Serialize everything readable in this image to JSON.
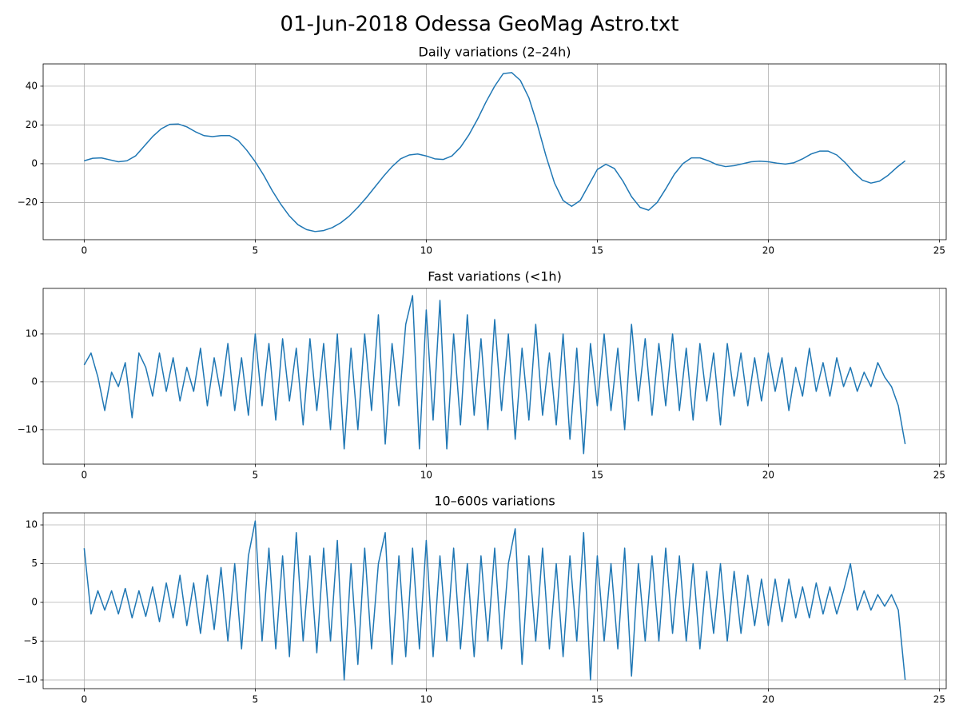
{
  "title": "01-Jun-2018 Odessa GeoMag Astro.txt",
  "chart_data": [
    {
      "type": "line",
      "title": "Daily variations (2–24h)",
      "color": "#1f77b4",
      "grid": true,
      "xlim": [
        -1.2,
        25.2
      ],
      "ylim": [
        -39.2,
        51.5
      ],
      "xticks": [
        0,
        5,
        10,
        15,
        20,
        25
      ],
      "yticks": [
        {
          "value": -20,
          "label": "−20"
        },
        0,
        20,
        40
      ],
      "x": [
        0,
        0.25,
        0.5,
        0.75,
        1,
        1.25,
        1.5,
        1.75,
        2,
        2.25,
        2.5,
        2.75,
        3,
        3.25,
        3.5,
        3.75,
        4,
        4.25,
        4.5,
        4.75,
        5,
        5.25,
        5.5,
        5.75,
        6,
        6.25,
        6.5,
        6.75,
        7,
        7.25,
        7.5,
        7.75,
        8,
        8.25,
        8.5,
        8.75,
        9,
        9.25,
        9.5,
        9.75,
        10,
        10.25,
        10.5,
        10.75,
        11,
        11.25,
        11.5,
        11.75,
        12,
        12.25,
        12.5,
        12.75,
        13,
        13.25,
        13.5,
        13.75,
        14,
        14.25,
        14.5,
        14.75,
        15,
        15.25,
        15.5,
        15.75,
        16,
        16.25,
        16.5,
        16.75,
        17,
        17.25,
        17.5,
        17.75,
        18,
        18.25,
        18.5,
        18.75,
        19,
        19.25,
        19.5,
        19.75,
        20,
        20.25,
        20.5,
        20.75,
        21,
        21.25,
        21.5,
        21.75,
        22,
        22.25,
        22.5,
        22.75,
        23,
        23.25,
        23.5,
        23.75,
        24
      ],
      "values": [
        1.5,
        2.8,
        3,
        2,
        1,
        1.5,
        4,
        9,
        14,
        18,
        20.3,
        20.5,
        19,
        16.5,
        14.5,
        14,
        14.5,
        14.5,
        12,
        7,
        1,
        -6,
        -14,
        -21,
        -27,
        -31.5,
        -34,
        -35,
        -34.5,
        -33,
        -30.5,
        -27,
        -22.5,
        -17.5,
        -12,
        -6.5,
        -1.5,
        2.5,
        4.5,
        5,
        4,
        2.5,
        2.2,
        4,
        8.5,
        15,
        23,
        32,
        40,
        46.5,
        47,
        43,
        34,
        20,
        4,
        -10,
        -19,
        -22,
        -19,
        -11,
        -3,
        -0.3,
        -2.5,
        -9,
        -17,
        -22.5,
        -24,
        -20,
        -13,
        -5.5,
        0,
        3,
        3,
        1.5,
        -0.5,
        -1.5,
        -1,
        0,
        1,
        1.3,
        1,
        0.3,
        -0.2,
        0.5,
        2.5,
        5,
        6.5,
        6.5,
        4.5,
        0.5,
        -4.5,
        -8.5,
        -10,
        -9,
        -6,
        -2,
        1.5
      ]
    },
    {
      "type": "line",
      "title": "Fast variations (<1h)",
      "color": "#1f77b4",
      "grid": true,
      "xlim": [
        -1.2,
        25.2
      ],
      "ylim": [
        -17.2,
        19.5
      ],
      "xticks": [
        0,
        5,
        10,
        15,
        20,
        25
      ],
      "yticks": [
        {
          "value": -10,
          "label": "−10"
        },
        0,
        10
      ],
      "x": [
        0,
        0.2,
        0.4,
        0.6,
        0.8,
        1,
        1.2,
        1.4,
        1.6,
        1.8,
        2,
        2.2,
        2.4,
        2.6,
        2.8,
        3,
        3.2,
        3.4,
        3.6,
        3.8,
        4,
        4.2,
        4.4,
        4.6,
        4.8,
        5,
        5.2,
        5.4,
        5.6,
        5.8,
        6,
        6.2,
        6.4,
        6.6,
        6.8,
        7,
        7.2,
        7.4,
        7.6,
        7.8,
        8,
        8.2,
        8.4,
        8.6,
        8.8,
        9,
        9.2,
        9.4,
        9.6,
        9.8,
        10,
        10.2,
        10.4,
        10.6,
        10.8,
        11,
        11.2,
        11.4,
        11.6,
        11.8,
        12,
        12.2,
        12.4,
        12.6,
        12.8,
        13,
        13.2,
        13.4,
        13.6,
        13.8,
        14,
        14.2,
        14.4,
        14.6,
        14.8,
        15,
        15.2,
        15.4,
        15.6,
        15.8,
        16,
        16.2,
        16.4,
        16.6,
        16.8,
        17,
        17.2,
        17.4,
        17.6,
        17.8,
        18,
        18.2,
        18.4,
        18.6,
        18.8,
        19,
        19.2,
        19.4,
        19.6,
        19.8,
        20,
        20.2,
        20.4,
        20.6,
        20.8,
        21,
        21.2,
        21.4,
        21.6,
        21.8,
        22,
        22.2,
        22.4,
        22.6,
        22.8,
        23,
        23.2,
        23.4,
        23.6,
        23.8,
        24
      ],
      "values": [
        3.5,
        6,
        1,
        -6,
        2,
        -1,
        4,
        -7.5,
        6,
        3,
        -3,
        6,
        -2,
        5,
        -4,
        3,
        -2,
        7,
        -5,
        5,
        -3,
        8,
        -6,
        5,
        -7,
        10,
        -5,
        8,
        -8,
        9,
        -4,
        7,
        -9,
        9,
        -6,
        8,
        -10,
        10,
        -14,
        7,
        -10,
        10,
        -6,
        14,
        -13,
        8,
        -5,
        12,
        18,
        -14,
        15,
        -8,
        17,
        -14,
        10,
        -9,
        14,
        -7,
        9,
        -10,
        13,
        -6,
        10,
        -12,
        7,
        -8,
        12,
        -7,
        6,
        -9,
        10,
        -12,
        7,
        -15,
        8,
        -5,
        10,
        -6,
        7,
        -10,
        12,
        -4,
        9,
        -7,
        8,
        -5,
        10,
        -6,
        7,
        -8,
        8,
        -4,
        6,
        -9,
        8,
        -3,
        6,
        -5,
        5,
        -4,
        6,
        -2,
        5,
        -6,
        3,
        -3,
        7,
        -2,
        4,
        -3,
        5,
        -1,
        3,
        -2,
        2,
        -1,
        4,
        1,
        -1,
        -5,
        -13
      ]
    },
    {
      "type": "line",
      "title": "10–600s variations",
      "color": "#1f77b4",
      "grid": true,
      "xlim": [
        -1.2,
        25.2
      ],
      "ylim": [
        -11.13,
        11.55
      ],
      "xticks": [
        0,
        5,
        10,
        15,
        20,
        25
      ],
      "yticks": [
        {
          "value": -10,
          "label": "−10"
        },
        {
          "value": -5,
          "label": "−5"
        },
        0,
        5,
        10
      ],
      "x": [
        0,
        0.2,
        0.4,
        0.6,
        0.8,
        1,
        1.2,
        1.4,
        1.6,
        1.8,
        2,
        2.2,
        2.4,
        2.6,
        2.8,
        3,
        3.2,
        3.4,
        3.6,
        3.8,
        4,
        4.2,
        4.4,
        4.6,
        4.8,
        5,
        5.2,
        5.4,
        5.6,
        5.8,
        6,
        6.2,
        6.4,
        6.6,
        6.8,
        7,
        7.2,
        7.4,
        7.6,
        7.8,
        8,
        8.2,
        8.4,
        8.6,
        8.8,
        9,
        9.2,
        9.4,
        9.6,
        9.8,
        10,
        10.2,
        10.4,
        10.6,
        10.8,
        11,
        11.2,
        11.4,
        11.6,
        11.8,
        12,
        12.2,
        12.4,
        12.6,
        12.8,
        13,
        13.2,
        13.4,
        13.6,
        13.8,
        14,
        14.2,
        14.4,
        14.6,
        14.8,
        15,
        15.2,
        15.4,
        15.6,
        15.8,
        16,
        16.2,
        16.4,
        16.6,
        16.8,
        17,
        17.2,
        17.4,
        17.6,
        17.8,
        18,
        18.2,
        18.4,
        18.6,
        18.8,
        19,
        19.2,
        19.4,
        19.6,
        19.8,
        20,
        20.2,
        20.4,
        20.6,
        20.8,
        21,
        21.2,
        21.4,
        21.6,
        21.8,
        22,
        22.2,
        22.4,
        22.6,
        22.8,
        23,
        23.2,
        23.4,
        23.6,
        23.8,
        24
      ],
      "values": [
        7,
        -1.5,
        1.5,
        -1,
        1.5,
        -1.5,
        1.8,
        -2,
        1.5,
        -1.8,
        2,
        -2.5,
        2.5,
        -2,
        3.5,
        -3,
        2.5,
        -4,
        3.5,
        -3.5,
        4.5,
        -5,
        5,
        -6,
        6,
        10.5,
        -5,
        7,
        -6,
        6,
        -7,
        9,
        -5,
        6,
        -6.5,
        7,
        -5,
        8,
        -10,
        5,
        -8,
        7,
        -6,
        5,
        9,
        -8,
        6,
        -7,
        7,
        -6,
        8,
        -7,
        6,
        -5,
        7,
        -6,
        5,
        -7,
        6,
        -5,
        7,
        -6,
        5,
        9.5,
        -8,
        6,
        -5,
        7,
        -6,
        5,
        -7,
        6,
        -5,
        9,
        -10,
        6,
        -5,
        5,
        -6,
        7,
        -9.5,
        5,
        -5,
        6,
        -5,
        7,
        -4,
        6,
        -5,
        5,
        -6,
        4,
        -4,
        5,
        -5,
        4,
        -4,
        3.5,
        -3,
        3,
        -3,
        3,
        -2.5,
        3,
        -2,
        2,
        -2,
        2.5,
        -1.5,
        2,
        -1.5,
        1.5,
        5,
        -1,
        1.5,
        -1,
        1,
        -0.5,
        1,
        -1,
        -10
      ]
    }
  ]
}
